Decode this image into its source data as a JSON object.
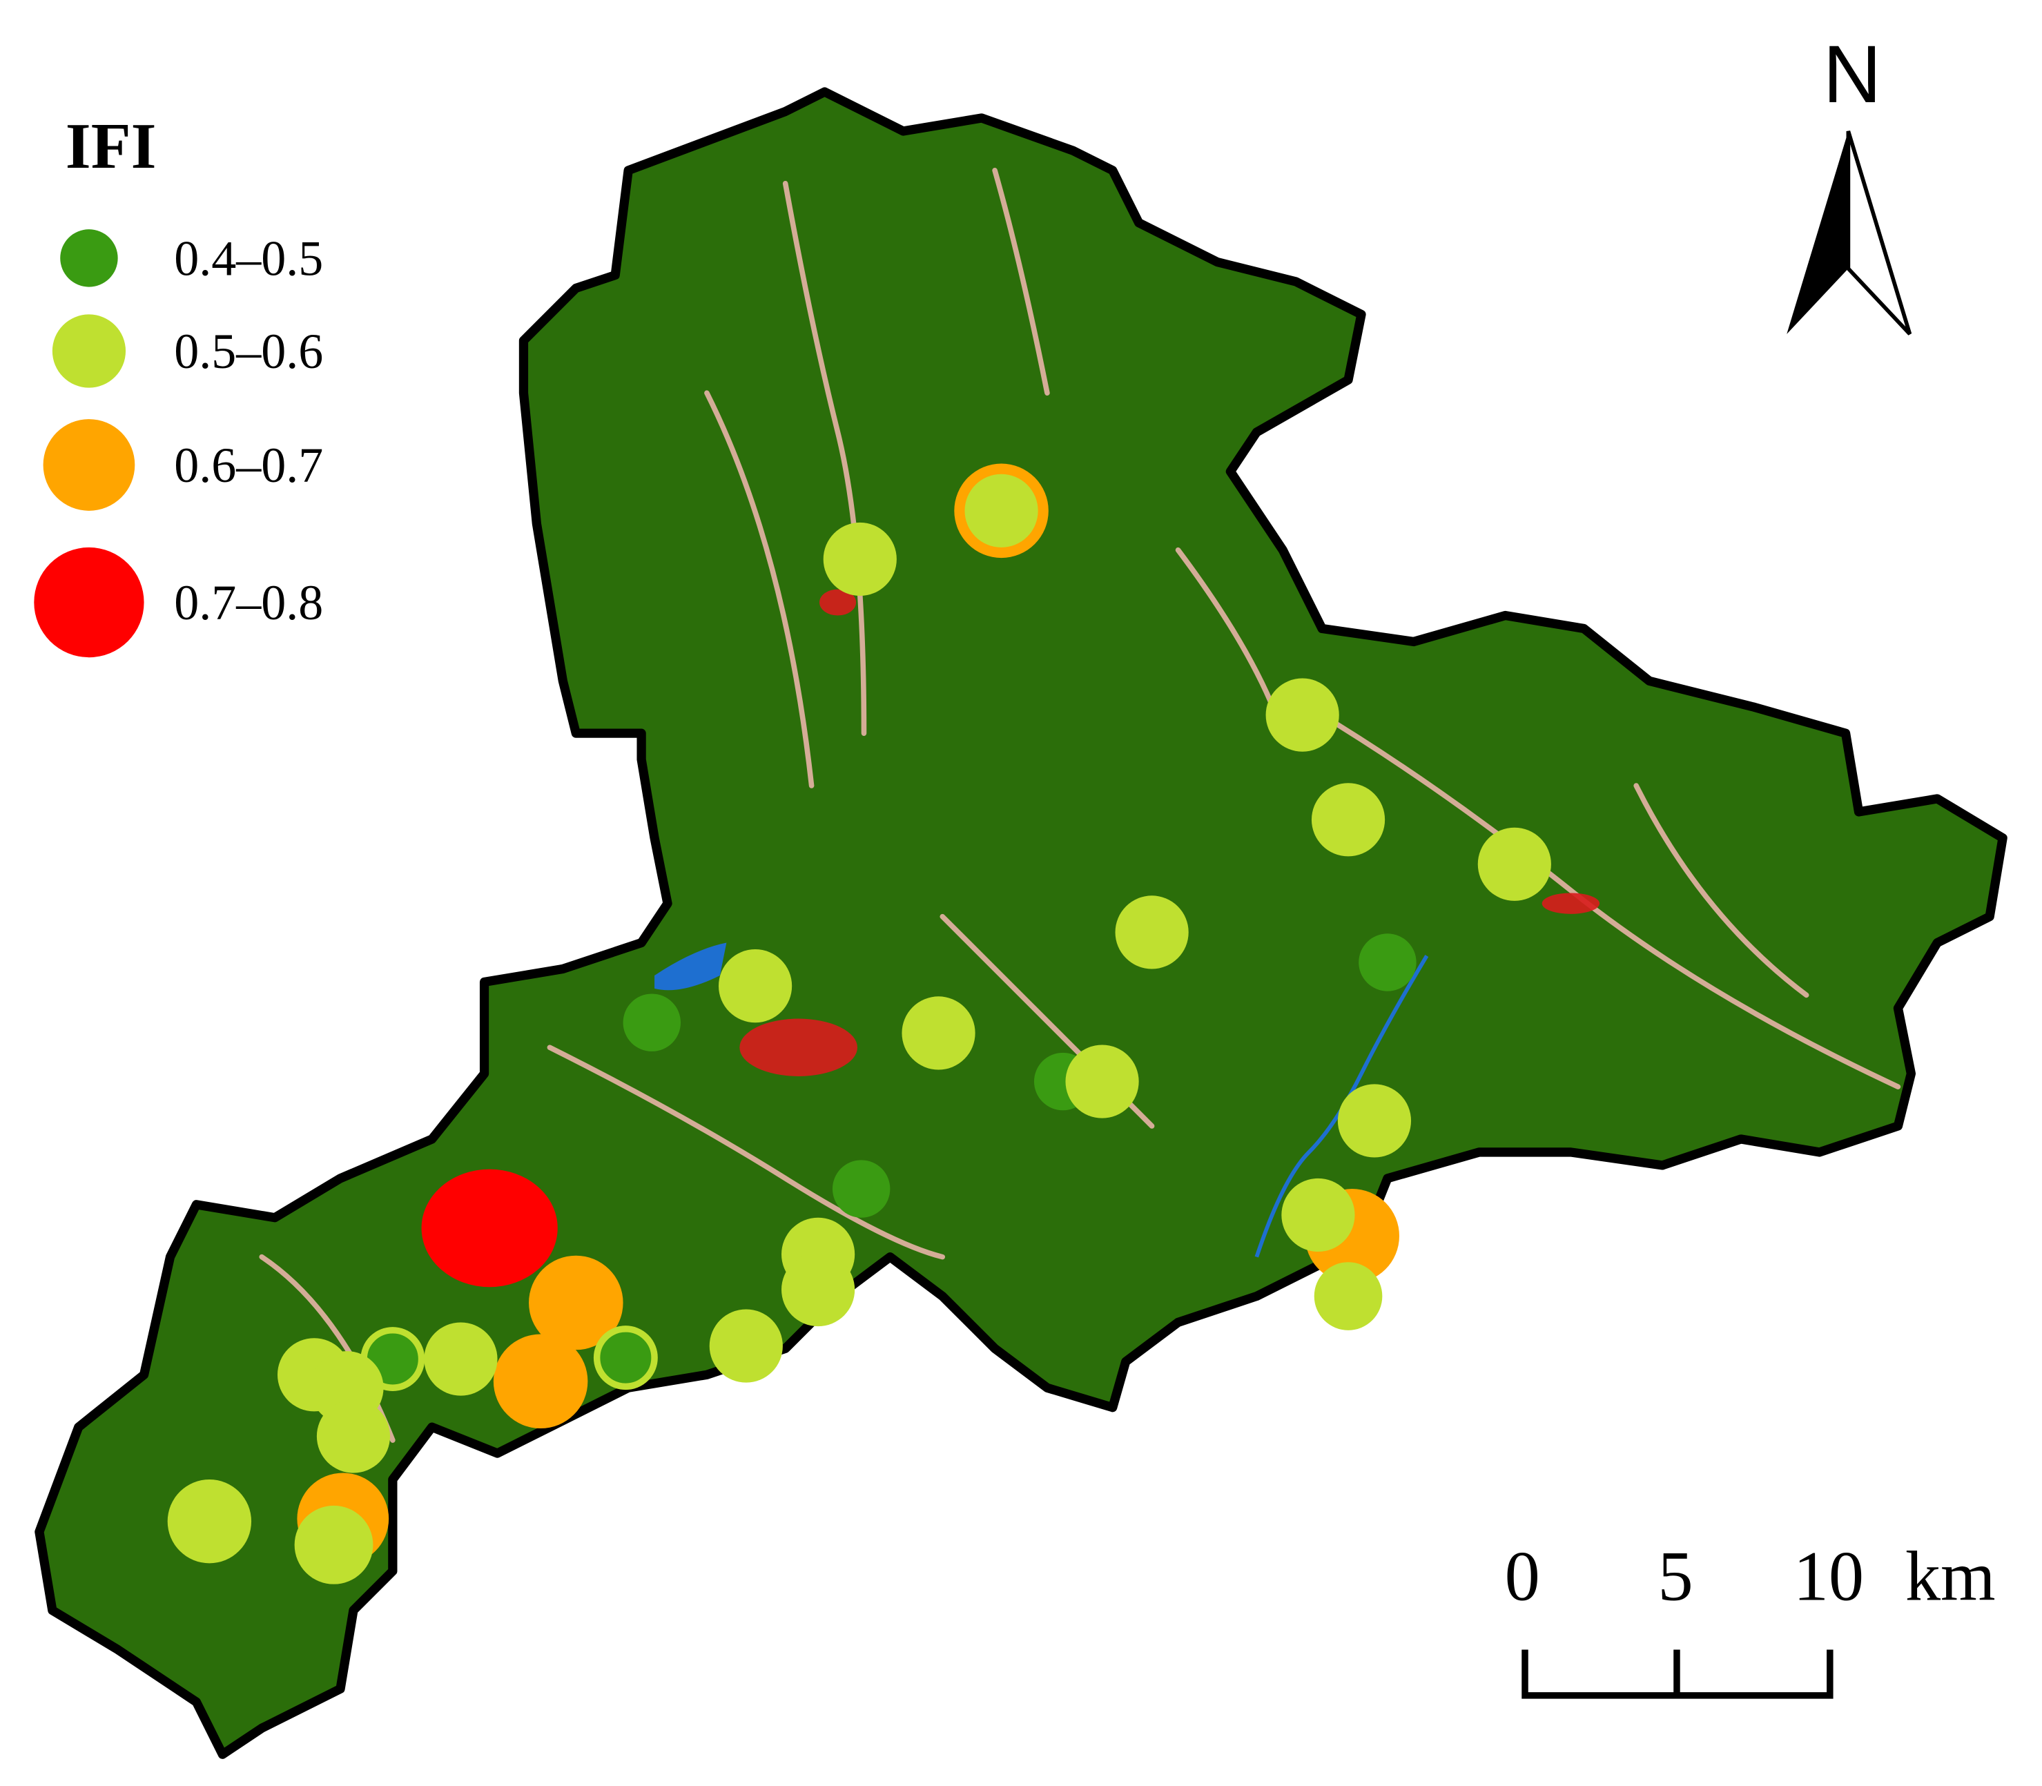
{
  "legend": {
    "title": "IFI",
    "items": [
      {
        "label": "0.4–0.5",
        "color": "#3a9b12"
      },
      {
        "label": "0.5–0.6",
        "color": "#bfe030"
      },
      {
        "label": "0.6–0.7",
        "color": "#ffa500"
      },
      {
        "label": "0.7–0.8",
        "color": "#ff0000"
      }
    ]
  },
  "north": "N",
  "scale_bar": {
    "labels": [
      "0",
      "5",
      "10"
    ],
    "unit": "km"
  }
}
